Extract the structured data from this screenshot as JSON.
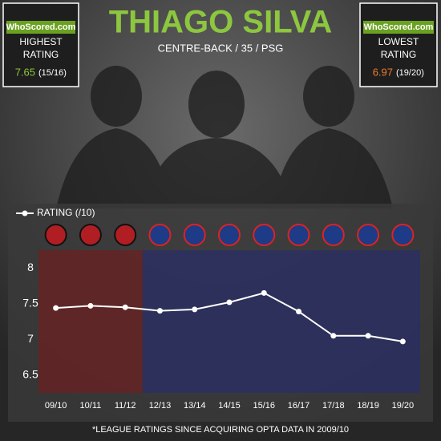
{
  "chart_data": {
    "type": "line",
    "title": "THIAGO SILVA",
    "subtitle": "CENTRE-BACK / 35 / PSG",
    "logo": "WhoScored.com",
    "highest": {
      "label": "HIGHEST RATING",
      "value": 7.65,
      "season": "(15/16)"
    },
    "lowest": {
      "label": "LOWEST RATING",
      "value": 6.97,
      "season": "(19/20)"
    },
    "categories": [
      "09/10",
      "10/11",
      "11/12",
      "12/13",
      "13/14",
      "14/15",
      "15/16",
      "16/17",
      "17/18",
      "18/19",
      "19/20"
    ],
    "series": [
      {
        "name": "RATING (/10)",
        "color": "#ffffff",
        "values": [
          7.44,
          7.47,
          7.45,
          7.4,
          7.42,
          7.52,
          7.65,
          7.39,
          7.05,
          7.05,
          6.97
        ]
      }
    ],
    "ylim": [
      6.25,
      8.25
    ],
    "yticks": [
      6.5,
      7,
      7.5,
      8
    ],
    "footnote": "*LEAGUE RATINGS SINCE ACQUIRING OPTA DATA IN 2009/10"
  }
}
